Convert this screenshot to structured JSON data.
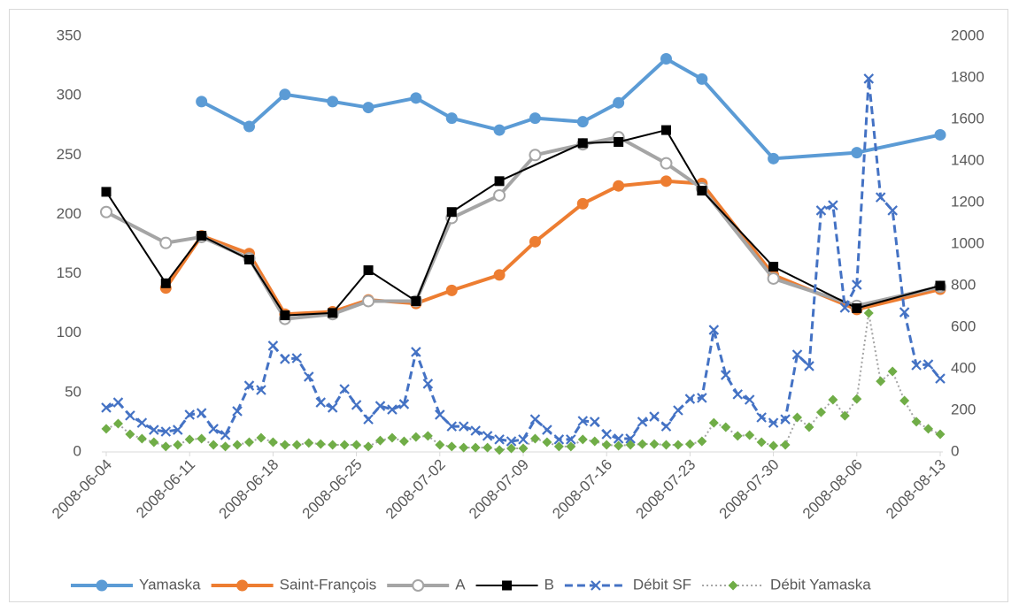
{
  "chart_data": {
    "type": "line",
    "xlim": [
      "2008-06-04",
      "2008-08-13"
    ],
    "xticks": [
      "2008-06-04",
      "2008-06-11",
      "2008-06-18",
      "2008-06-25",
      "2008-07-02",
      "2008-07-09",
      "2008-07-16",
      "2008-07-23",
      "2008-07-30",
      "2008-08-06",
      "2008-08-13"
    ],
    "ylim": [
      0,
      350
    ],
    "yticks": [
      0,
      50,
      100,
      150,
      200,
      250,
      300,
      350
    ],
    "y2lim": [
      0,
      2000
    ],
    "y2ticks": [
      0,
      200,
      400,
      600,
      800,
      1000,
      1200,
      1400,
      1600,
      1800,
      2000
    ],
    "grid": false,
    "legend": "bottom",
    "series": [
      {
        "name": "Yamaska",
        "color": "#5b9bd5",
        "marker": "circle",
        "style": "solid",
        "x": [
          "2008-06-12",
          "2008-06-16",
          "2008-06-19",
          "2008-06-23",
          "2008-06-26",
          "2008-06-30",
          "2008-07-03",
          "2008-07-07",
          "2008-07-10",
          "2008-07-14",
          "2008-07-17",
          "2008-07-21",
          "2008-07-24",
          "2008-07-30",
          "2008-08-06",
          "2008-08-13"
        ],
        "values": [
          295,
          274,
          301,
          295,
          290,
          298,
          281,
          271,
          281,
          278,
          294,
          331,
          314,
          247,
          252,
          267
        ]
      },
      {
        "name": "Saint-François",
        "color": "#ed7d31",
        "marker": "circle",
        "style": "solid",
        "x": [
          "2008-06-09",
          "2008-06-12",
          "2008-06-16",
          "2008-06-19",
          "2008-06-23",
          "2008-06-26",
          "2008-06-30",
          "2008-07-03",
          "2008-07-07",
          "2008-07-10",
          "2008-07-14",
          "2008-07-17",
          "2008-07-21",
          "2008-07-24",
          "2008-07-30",
          "2008-08-06",
          "2008-08-13"
        ],
        "values": [
          138,
          182,
          167,
          116,
          118,
          128,
          125,
          136,
          149,
          177,
          209,
          224,
          228,
          226,
          149,
          120,
          137
        ]
      },
      {
        "name": "A",
        "color": "#a5a5a5",
        "marker": "open-circle",
        "style": "solid",
        "x": [
          "2008-06-04",
          "2008-06-09",
          "2008-06-12",
          "2008-06-16",
          "2008-06-19",
          "2008-06-23",
          "2008-06-26",
          "2008-06-30",
          "2008-07-03",
          "2008-07-07",
          "2008-07-10",
          "2008-07-14",
          "2008-07-17",
          "2008-07-21",
          "2008-07-24",
          "2008-07-30",
          "2008-08-06",
          "2008-08-13"
        ],
        "values": [
          202,
          176,
          181,
          163,
          112,
          116,
          127,
          127,
          197,
          216,
          250,
          259,
          265,
          243,
          222,
          146,
          123,
          139
        ]
      },
      {
        "name": "B",
        "color": "#000000",
        "marker": "square",
        "style": "thin",
        "x": [
          "2008-06-04",
          "2008-06-09",
          "2008-06-12",
          "2008-06-16",
          "2008-06-19",
          "2008-06-23",
          "2008-06-26",
          "2008-06-30",
          "2008-07-03",
          "2008-07-07",
          "2008-07-14",
          "2008-07-17",
          "2008-07-21",
          "2008-07-24",
          "2008-07-30",
          "2008-08-06",
          "2008-08-13"
        ],
        "values": [
          219,
          142,
          182,
          162,
          115,
          117,
          153,
          127,
          202,
          228,
          260,
          261,
          271,
          220,
          156,
          121,
          140
        ]
      },
      {
        "name": "Débit SF",
        "color": "#4472c4",
        "marker": "x",
        "style": "dashed",
        "axis": "y2",
        "values": [
          213,
          238,
          175,
          140,
          106,
          98,
          106,
          179,
          187,
          111,
          81,
          196,
          319,
          298,
          511,
          447,
          451,
          362,
          238,
          213,
          302,
          226,
          157,
          221,
          204,
          230,
          481,
          328,
          179,
          123,
          123,
          102,
          77,
          60,
          51,
          60,
          157,
          106,
          60,
          60,
          149,
          145,
          85,
          64,
          64,
          145,
          170,
          123,
          200,
          255,
          260,
          587,
          370,
          277,
          251,
          166,
          140,
          157,
          468,
          413,
          1162,
          1187,
          694,
          804,
          1796,
          1225,
          1162,
          672,
          417,
          421,
          353
        ]
      },
      {
        "name": "Débit Yamaska",
        "color": "#a5a5a5",
        "marker_color": "#70ad47",
        "marker": "diamond",
        "style": "dotted",
        "axis": "y2",
        "values": [
          111,
          136,
          85,
          64,
          47,
          26,
          34,
          60,
          64,
          34,
          26,
          34,
          47,
          68,
          47,
          34,
          34,
          43,
          38,
          34,
          34,
          34,
          26,
          55,
          68,
          51,
          72,
          77,
          34,
          26,
          21,
          21,
          21,
          9,
          17,
          17,
          64,
          47,
          26,
          26,
          60,
          51,
          34,
          30,
          34,
          38,
          38,
          34,
          34,
          38,
          51,
          140,
          119,
          77,
          81,
          47,
          30,
          34,
          166,
          119,
          191,
          251,
          174,
          255,
          668,
          340,
          387,
          247,
          145,
          111,
          85
        ]
      }
    ]
  }
}
